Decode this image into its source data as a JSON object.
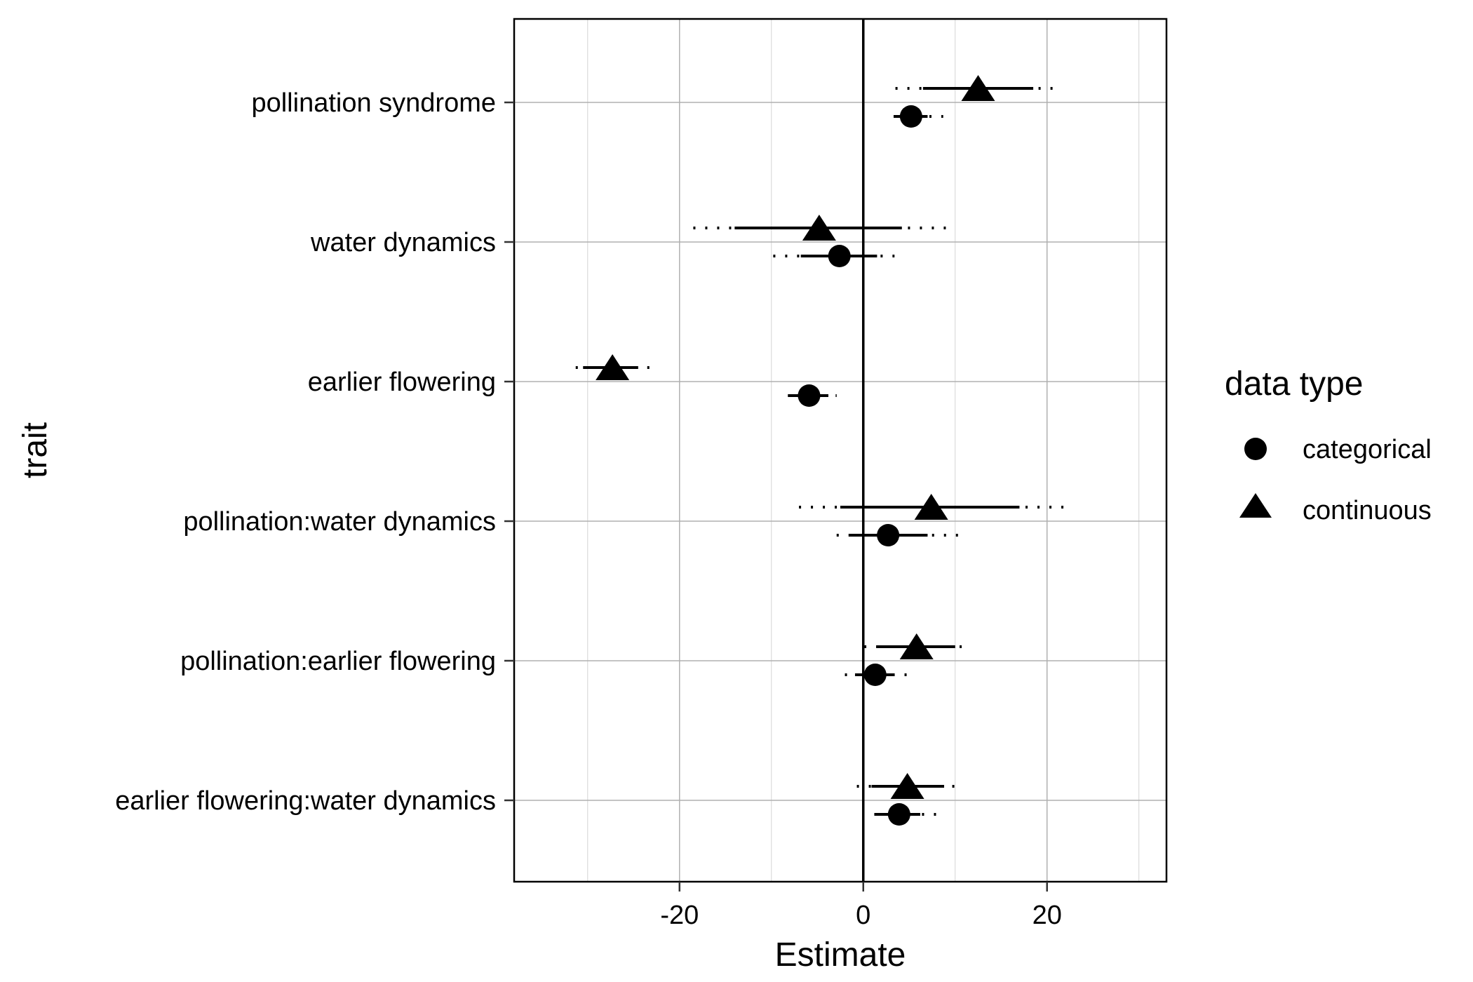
{
  "chart_data": {
    "type": "scatter",
    "subtype": "coefficient-plot",
    "xlabel": "Estimate",
    "ylabel": "trait",
    "xlim": [
      -38,
      33
    ],
    "xticks": [
      -20,
      0,
      20
    ],
    "xminor": [
      -30,
      -10,
      10,
      30
    ],
    "grid": true,
    "vline": 0,
    "legend": {
      "title": "data type",
      "position": "right",
      "entries": [
        {
          "label": "categorical",
          "shape": "circle"
        },
        {
          "label": "continuous",
          "shape": "triangle"
        }
      ]
    },
    "categories": [
      "pollination syndrome",
      "water dynamics",
      "earlier flowering",
      "pollination:water dynamics",
      "pollination:earlier flowering",
      "earlier flowering:water dynamics"
    ],
    "series": [
      {
        "name": "categorical",
        "shape": "circle",
        "points": [
          {
            "estimate": 5.2,
            "inner": [
              3.5,
              7.0
            ],
            "outer": [
              3.3,
              8.7
            ]
          },
          {
            "estimate": -2.6,
            "inner": [
              -6.8,
              1.5
            ],
            "outer": [
              -9.8,
              3.4
            ]
          },
          {
            "estimate": -5.9,
            "inner": [
              -8.2,
              -3.8
            ],
            "outer": [
              -8.2,
              -2.9
            ]
          },
          {
            "estimate": 2.7,
            "inner": [
              -1.5,
              7.0
            ],
            "outer": [
              -2.9,
              10.4
            ]
          },
          {
            "estimate": 1.3,
            "inner": [
              -0.9,
              3.4
            ],
            "outer": [
              -2.0,
              4.8
            ]
          },
          {
            "estimate": 3.9,
            "inner": [
              1.2,
              6.2
            ],
            "outer": [
              1.2,
              8.0
            ]
          }
        ]
      },
      {
        "name": "continuous",
        "shape": "triangle",
        "points": [
          {
            "estimate": 12.5,
            "inner": [
              6.5,
              18.5
            ],
            "outer": [
              3.5,
              21.5
            ]
          },
          {
            "estimate": -4.8,
            "inner": [
              -14.0,
              4.2
            ],
            "outer": [
              -18.5,
              9.0
            ]
          },
          {
            "estimate": -27.3,
            "inner": [
              -30.5,
              -24.5
            ],
            "outer": [
              -31.3,
              -22.5
            ]
          },
          {
            "estimate": 7.4,
            "inner": [
              -2.5,
              17.0
            ],
            "outer": [
              -7.0,
              22.0
            ]
          },
          {
            "estimate": 5.8,
            "inner": [
              1.6,
              10.0
            ],
            "outer": [
              0.1,
              11.5
            ]
          },
          {
            "estimate": 4.8,
            "inner": [
              0.9,
              8.8
            ],
            "outer": [
              -0.7,
              10.5
            ]
          }
        ]
      }
    ]
  }
}
